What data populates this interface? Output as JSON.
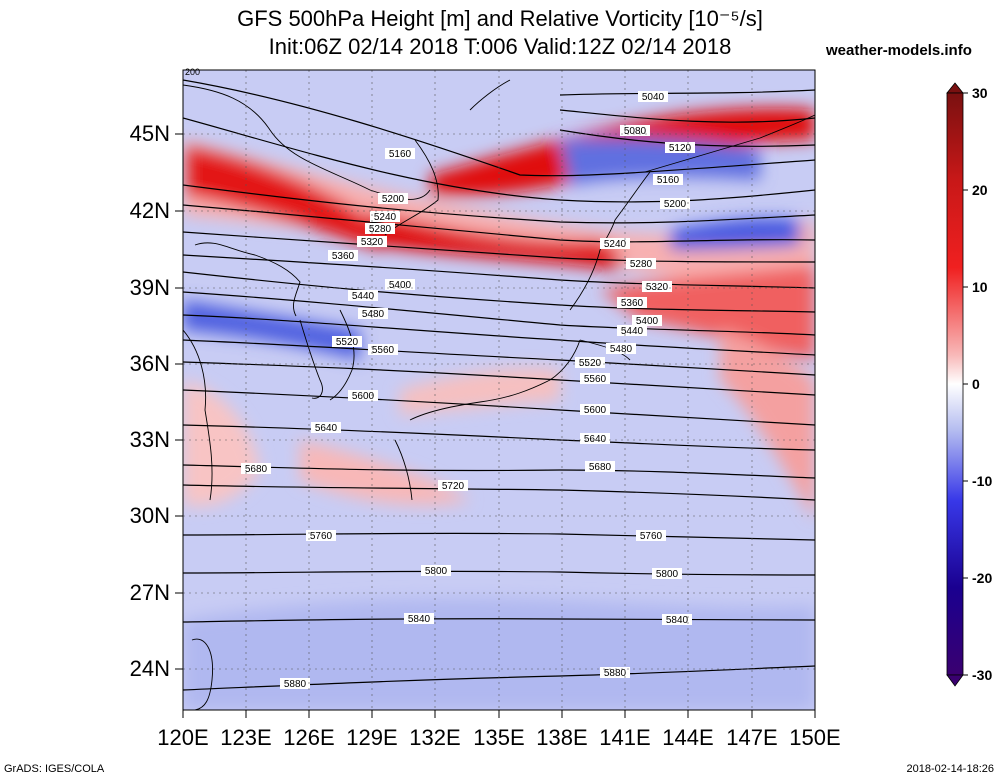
{
  "title": {
    "line1": "GFS 500hPa Height [m] and Relative Vorticity [10⁻⁵/s]",
    "line2": "Init:06Z 02/14 2018 T:006 Valid:12Z 02/14 2018"
  },
  "site": "weather-models.info",
  "lat_labels": [
    "45N",
    "42N",
    "39N",
    "36N",
    "33N",
    "30N",
    "27N",
    "24N"
  ],
  "lon_labels": [
    "120E",
    "123E",
    "126E",
    "129E",
    "132E",
    "135E",
    "138E",
    "141E",
    "144E",
    "147E",
    "150E"
  ],
  "colorbar": {
    "ticks": [
      "30",
      "20",
      "10",
      "0",
      "-10",
      "-20",
      "-30"
    ],
    "colors": [
      "#7a1010",
      "#c81818",
      "#f02020",
      "#f59090",
      "#ffffff",
      "#9aa6ec",
      "#3030e0",
      "#1a0090",
      "#3a0070"
    ]
  },
  "contour_labels": [
    "5040",
    "5080",
    "5120",
    "5160",
    "5200",
    "5160",
    "5200",
    "5240",
    "5280",
    "5320",
    "5360",
    "5400",
    "5440",
    "5480",
    "5520",
    "5560",
    "5600",
    "5640",
    "5680",
    "5720",
    "5760",
    "5800",
    "5840",
    "5880",
    "5240",
    "5280",
    "5320",
    "5360",
    "5400",
    "5440",
    "5480",
    "5520",
    "5560",
    "5600",
    "5640",
    "5680",
    "5760",
    "5800",
    "5840",
    "5880"
  ],
  "corner_label": "200",
  "footer": {
    "credit": "GrADS: IGES/COLA",
    "timestamp": "2018-02-14-18:26"
  }
}
